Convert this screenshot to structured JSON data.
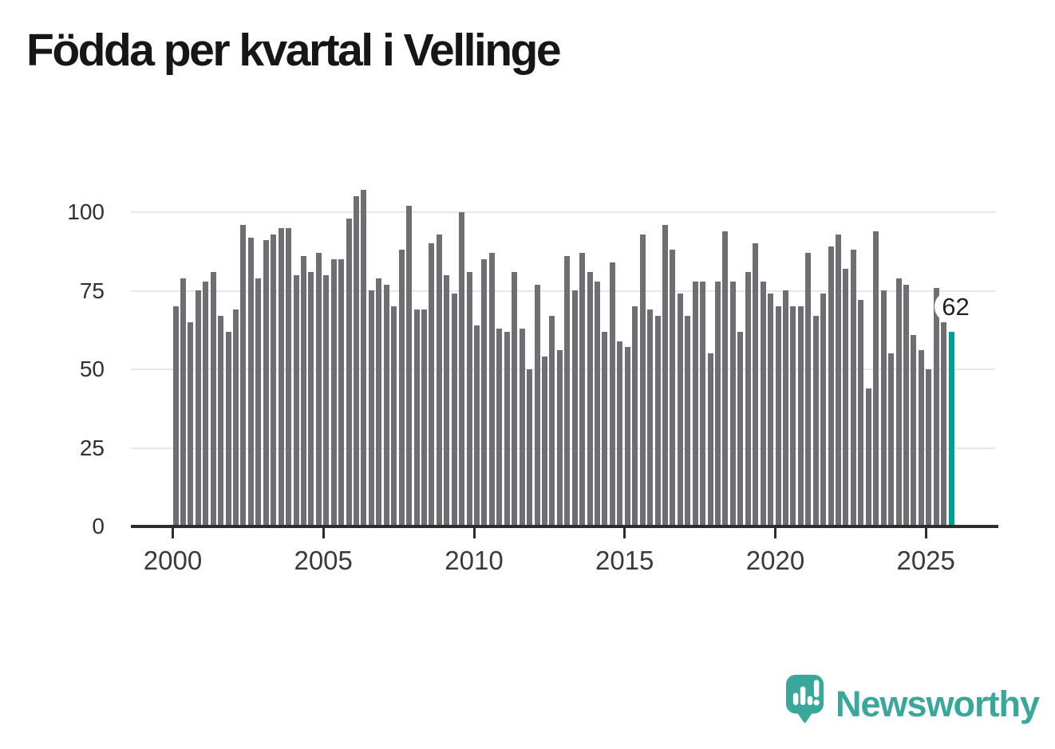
{
  "title": "Födda per kvartal i Vellinge",
  "chart_data": {
    "type": "bar",
    "title": "Födda per kvartal i Vellinge",
    "x_unit": "quarter",
    "x_start_label": "2000 Q1",
    "x_end_label": "2025 Q4",
    "values": [
      70,
      79,
      65,
      75,
      78,
      81,
      67,
      62,
      69,
      96,
      92,
      79,
      91,
      93,
      95,
      95,
      80,
      86,
      81,
      87,
      80,
      85,
      85,
      98,
      105,
      107,
      75,
      79,
      77,
      70,
      88,
      102,
      69,
      69,
      90,
      93,
      80,
      74,
      100,
      81,
      64,
      85,
      87,
      63,
      62,
      81,
      63,
      50,
      77,
      54,
      67,
      56,
      86,
      75,
      87,
      81,
      78,
      62,
      84,
      59,
      57,
      70,
      93,
      69,
      67,
      96,
      88,
      74,
      67,
      78,
      78,
      55,
      78,
      94,
      78,
      62,
      81,
      90,
      78,
      74,
      70,
      75,
      70,
      70,
      87,
      67,
      74,
      89,
      93,
      82,
      88,
      72,
      44,
      94,
      75,
      55,
      79,
      77,
      61,
      56,
      50,
      76,
      65,
      62
    ],
    "highlight_last": {
      "label": "62",
      "value": 62
    },
    "xticks": {
      "labels": [
        "2000",
        "2005",
        "2010",
        "2015",
        "2020",
        "2025"
      ],
      "quarter_indices": [
        0,
        20,
        40,
        60,
        80,
        100
      ]
    },
    "yticks": [
      0,
      25,
      50,
      75,
      100
    ],
    "ylim": [
      0,
      110
    ],
    "grid": true,
    "legend": "none",
    "bar_color": "#6e6e73",
    "highlight_color": "#009e98"
  },
  "branding": {
    "wordmark": "Newsworthy",
    "logo_icon": "speech-bubble-bar-chart-exclamation-icon",
    "color": "#3aa79b"
  },
  "colors": {
    "background": "#ffffff",
    "axis": "#2d2d2d",
    "gridline": "#e7e7e7",
    "tick_text": "#303030",
    "title_text": "#161616",
    "label_bubble_bg": "#ffffff",
    "label_bubble_text": "#222222"
  }
}
